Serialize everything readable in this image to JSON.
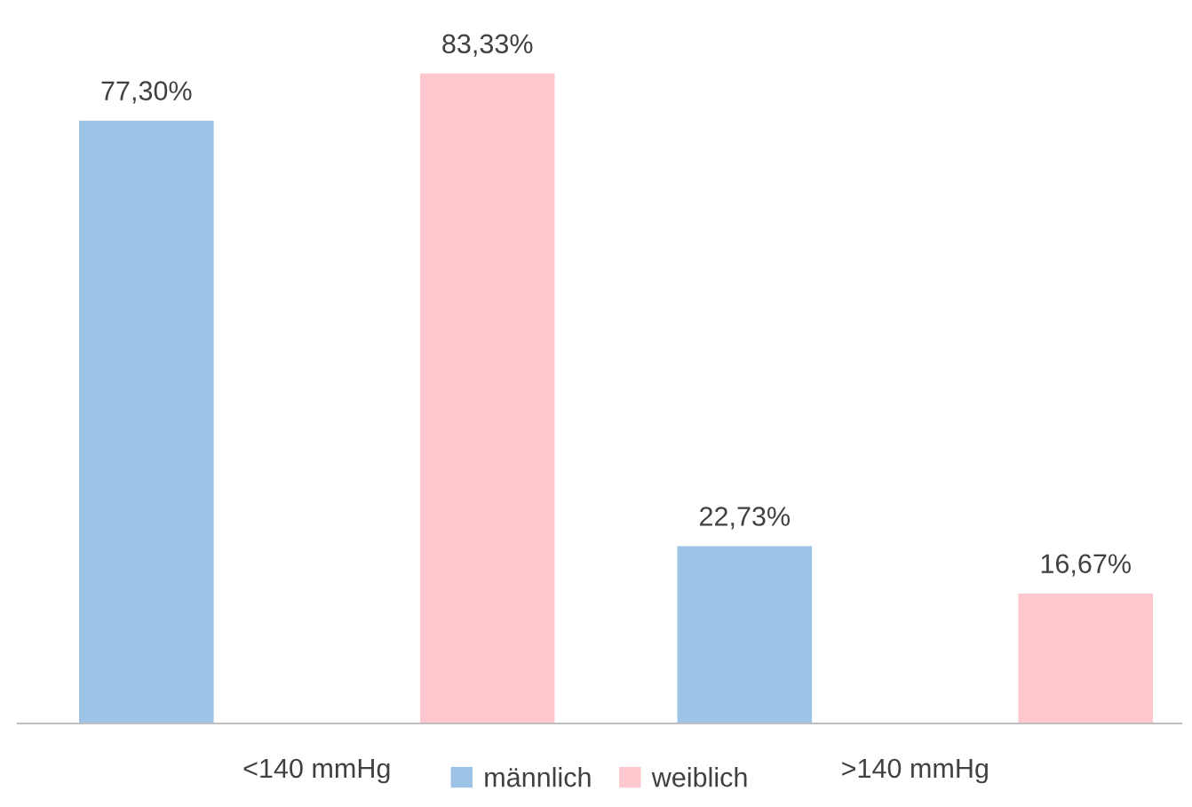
{
  "chart_data": {
    "type": "bar",
    "categories": [
      "<140 mmHg",
      ">140 mmHg"
    ],
    "series": [
      {
        "name": "männlich",
        "color": "#9dc3e6",
        "values": [
          77.3,
          22.73
        ],
        "value_labels": [
          "77,30%",
          "22,73%"
        ]
      },
      {
        "name": "weiblich",
        "color": "#ffc7ce",
        "values": [
          83.33,
          16.67
        ],
        "value_labels": [
          "83,33%",
          "16,67%"
        ]
      }
    ],
    "legend": "bottom",
    "grid": false,
    "tick_labels": "x"
  }
}
